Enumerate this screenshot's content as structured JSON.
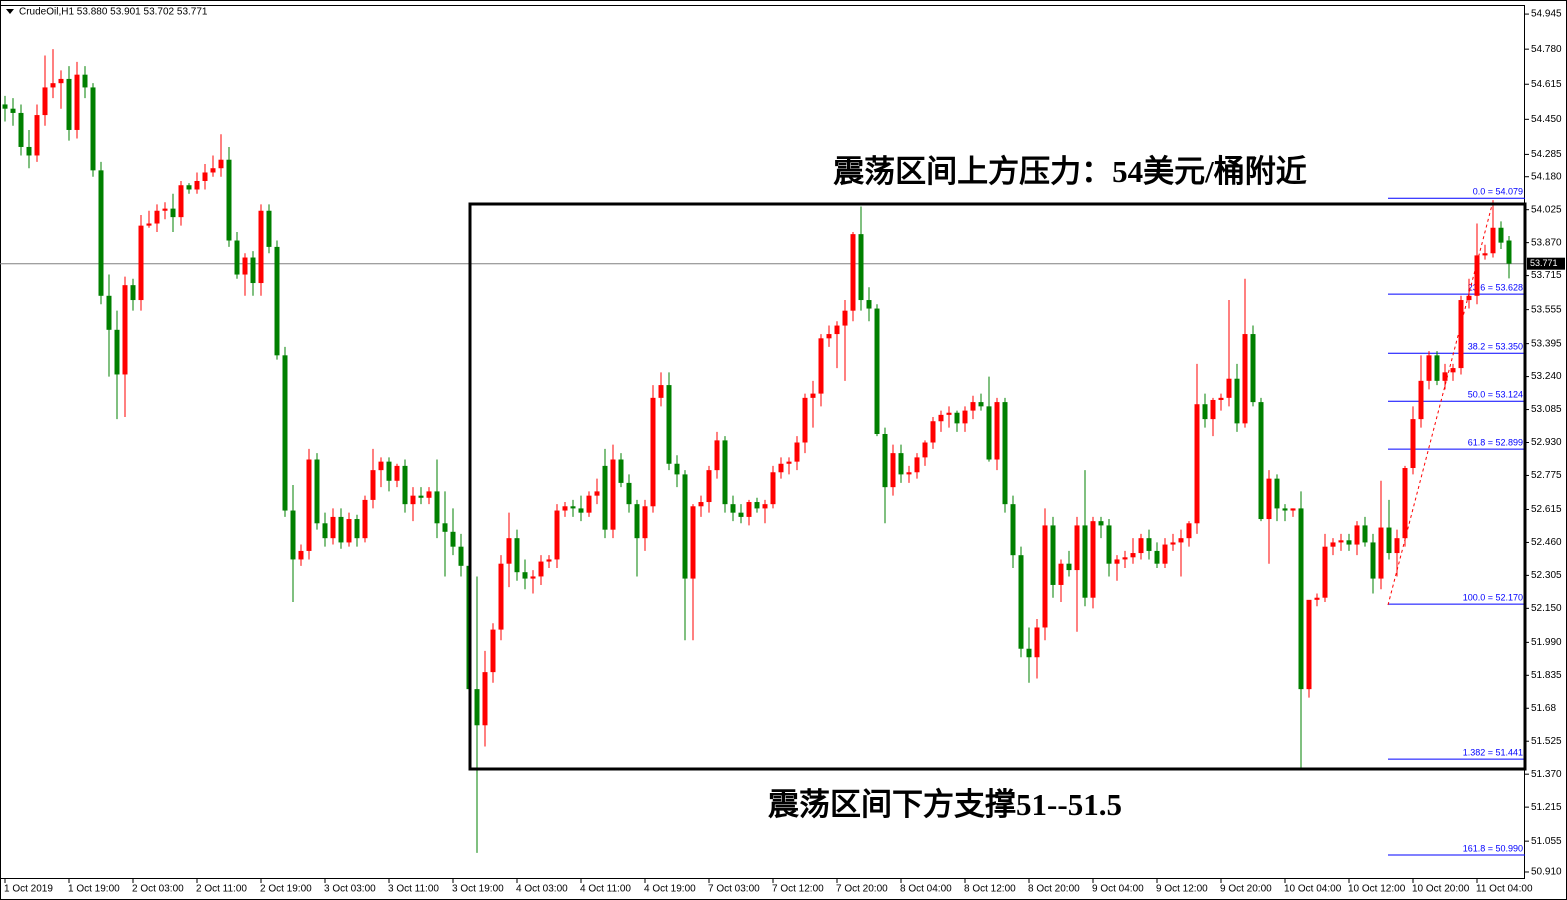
{
  "chart_data": {
    "type": "candlestick",
    "title": "CrudeOil,H1  53.880 53.901 53.702 53.771",
    "annotations": [
      "震荡区间上方压力：54美元/桶附近",
      "震荡区间下方支撑51--51.5"
    ],
    "up_color": "#ff0000",
    "down_color": "#008000",
    "ylim": [
      50.877,
      54.983
    ],
    "yticks": [
      54.945,
      {
        "value": 54.78,
        "label": "54.780"
      },
      54.615,
      {
        "value": 54.45,
        "label": "54.450"
      },
      54.285,
      {
        "value": 54.18,
        "label": "54.180"
      },
      54.025,
      {
        "value": 53.87,
        "label": "53.870"
      },
      53.715,
      53.555,
      53.395,
      {
        "value": 53.24,
        "label": "53.240"
      },
      53.085,
      {
        "value": 52.93,
        "label": "52.930"
      },
      52.775,
      52.615,
      {
        "value": 52.46,
        "label": "52.460"
      },
      52.305,
      {
        "value": 52.15,
        "label": "52.150"
      },
      {
        "value": 51.99,
        "label": "51.990"
      },
      51.835,
      51.68,
      51.525,
      {
        "value": 51.37,
        "label": "51.370"
      },
      51.215,
      51.055,
      {
        "value": 50.91,
        "label": "50.910"
      }
    ],
    "last_price": 53.771,
    "fibo": [
      {
        "label": "0.0 = 54.079",
        "value": 54.079
      },
      {
        "label": "23.6 = 53.628",
        "value": 53.628
      },
      {
        "label": "38.2 = 53.350",
        "value": 53.35
      },
      {
        "label": "50.0 = 53.124",
        "value": 53.124
      },
      {
        "label": "61.8 = 52.899",
        "value": 52.899
      },
      {
        "label": "100.0 = 52.170",
        "value": 52.17
      },
      {
        "label": "1.382 = 51.441",
        "value": 51.441
      },
      {
        "label": "161.8 = 50.990",
        "value": 50.99
      }
    ],
    "categories": [
      "1 Oct 2019",
      null,
      null,
      null,
      null,
      null,
      null,
      null,
      "1 Oct 19:00",
      null,
      null,
      null,
      null,
      null,
      null,
      null,
      "2 Oct 03:00",
      null,
      null,
      null,
      null,
      null,
      null,
      null,
      "2 Oct 11:00",
      null,
      null,
      null,
      null,
      null,
      null,
      null,
      "2 Oct 19:00",
      null,
      null,
      null,
      null,
      null,
      null,
      null,
      "3 Oct 03:00",
      null,
      null,
      null,
      null,
      null,
      null,
      null,
      "3 Oct 11:00",
      null,
      null,
      null,
      null,
      null,
      null,
      null,
      "3 Oct 19:00",
      null,
      null,
      null,
      null,
      null,
      null,
      null,
      "4 Oct 03:00",
      null,
      null,
      null,
      null,
      null,
      null,
      null,
      "4 Oct 11:00",
      null,
      null,
      null,
      null,
      null,
      null,
      null,
      "4 Oct 19:00",
      null,
      null,
      null,
      null,
      null,
      null,
      null,
      "7 Oct 03:00",
      null,
      null,
      null,
      null,
      null,
      null,
      null,
      "7 Oct 12:00",
      null,
      null,
      null,
      null,
      null,
      null,
      null,
      "7 Oct 20:00",
      null,
      null,
      null,
      null,
      null,
      null,
      null,
      "8 Oct 04:00",
      null,
      null,
      null,
      null,
      null,
      null,
      null,
      "8 Oct 12:00",
      null,
      null,
      null,
      null,
      null,
      null,
      null,
      "8 Oct 20:00",
      null,
      null,
      null,
      null,
      null,
      null,
      null,
      "9 Oct 04:00",
      null,
      null,
      null,
      null,
      null,
      null,
      null,
      "9 Oct 12:00",
      null,
      null,
      null,
      null,
      null,
      null,
      null,
      "9 Oct 20:00",
      null,
      null,
      null,
      null,
      null,
      null,
      null,
      "10 Oct 04:00",
      null,
      null,
      null,
      null,
      null,
      null,
      null,
      "10 Oct 12:00",
      null,
      null,
      null,
      null,
      null,
      null,
      null,
      "10 Oct 20:00",
      null,
      null,
      null,
      null,
      null,
      null,
      null,
      "11 Oct 04:00",
      null,
      null,
      null,
      null
    ],
    "ohlc": [
      [
        54.52,
        54.56,
        54.44,
        54.5
      ],
      [
        54.5,
        54.55,
        54.42,
        54.48
      ],
      [
        54.48,
        54.52,
        54.28,
        54.32
      ],
      [
        54.32,
        54.4,
        54.22,
        54.28
      ],
      [
        54.28,
        54.52,
        54.25,
        54.47
      ],
      [
        54.47,
        54.75,
        54.42,
        54.6
      ],
      [
        54.6,
        54.78,
        54.55,
        54.62
      ],
      [
        54.62,
        54.68,
        54.5,
        54.64
      ],
      [
        54.64,
        54.7,
        54.35,
        54.4
      ],
      [
        54.4,
        54.72,
        54.36,
        54.66
      ],
      [
        54.66,
        54.7,
        54.55,
        54.6
      ],
      [
        54.6,
        54.62,
        54.18,
        54.21
      ],
      [
        54.21,
        54.25,
        53.58,
        53.62
      ],
      [
        53.62,
        53.72,
        53.24,
        53.46
      ],
      [
        53.46,
        53.55,
        53.04,
        53.25
      ],
      [
        53.25,
        53.71,
        53.05,
        53.67
      ],
      [
        53.67,
        53.7,
        53.55,
        53.6
      ],
      [
        53.6,
        54.0,
        53.55,
        53.95
      ],
      [
        53.95,
        54.02,
        53.94,
        53.96
      ],
      [
        53.96,
        54.05,
        53.92,
        54.02
      ],
      [
        54.02,
        54.06,
        53.98,
        54.03
      ],
      [
        54.03,
        54.1,
        53.92,
        53.99
      ],
      [
        53.99,
        54.16,
        53.95,
        54.14
      ],
      [
        54.14,
        54.15,
        54.1,
        54.12
      ],
      [
        54.12,
        54.2,
        54.1,
        54.16
      ],
      [
        54.16,
        54.24,
        54.12,
        54.2
      ],
      [
        54.2,
        54.28,
        54.18,
        54.22
      ],
      [
        54.22,
        54.38,
        54.18,
        54.26
      ],
      [
        54.26,
        54.32,
        53.85,
        53.88
      ],
      [
        53.88,
        53.92,
        53.7,
        53.72
      ],
      [
        53.72,
        53.82,
        53.62,
        53.8
      ],
      [
        53.8,
        53.83,
        53.62,
        53.68
      ],
      [
        53.68,
        54.05,
        53.62,
        54.02
      ],
      [
        54.02,
        54.05,
        53.82,
        53.85
      ],
      [
        53.85,
        53.88,
        53.32,
        53.34
      ],
      [
        53.34,
        53.38,
        52.58,
        52.61
      ],
      [
        52.61,
        52.73,
        52.18,
        52.38
      ],
      [
        52.38,
        52.45,
        52.35,
        52.42
      ],
      [
        52.42,
        52.9,
        52.38,
        52.85
      ],
      [
        52.85,
        52.88,
        52.52,
        52.55
      ],
      [
        52.55,
        52.6,
        52.44,
        52.48
      ],
      [
        52.48,
        52.62,
        52.45,
        52.58
      ],
      [
        52.58,
        52.62,
        52.43,
        52.46
      ],
      [
        52.46,
        52.6,
        52.44,
        52.57
      ],
      [
        52.57,
        52.59,
        52.44,
        52.48
      ],
      [
        52.48,
        52.68,
        52.46,
        52.66
      ],
      [
        52.66,
        52.9,
        52.62,
        52.8
      ],
      [
        52.8,
        52.86,
        52.72,
        52.84
      ],
      [
        52.84,
        52.86,
        52.7,
        52.75
      ],
      [
        52.75,
        52.83,
        52.72,
        52.82
      ],
      [
        52.82,
        52.85,
        52.6,
        52.64
      ],
      [
        52.64,
        52.72,
        52.56,
        52.68
      ],
      [
        52.68,
        52.72,
        52.64,
        52.67
      ],
      [
        52.67,
        52.72,
        52.64,
        52.7
      ],
      [
        52.7,
        52.85,
        52.48,
        52.55
      ],
      [
        52.55,
        52.7,
        52.3,
        52.51
      ],
      [
        52.51,
        52.62,
        52.4,
        52.44
      ],
      [
        52.44,
        52.5,
        52.3,
        52.35
      ],
      [
        52.35,
        52.38,
        51.75,
        51.77
      ],
      [
        51.77,
        52.3,
        51.0,
        51.6
      ],
      [
        51.6,
        51.95,
        51.5,
        51.85
      ],
      [
        51.85,
        52.08,
        51.8,
        52.05
      ],
      [
        52.05,
        52.4,
        52.0,
        52.36
      ],
      [
        52.36,
        52.6,
        52.25,
        52.48
      ],
      [
        52.48,
        52.52,
        52.28,
        52.32
      ],
      [
        52.32,
        52.38,
        52.24,
        52.29
      ],
      [
        52.29,
        52.33,
        52.22,
        52.3
      ],
      [
        52.3,
        52.4,
        52.26,
        52.37
      ],
      [
        52.37,
        52.4,
        52.34,
        52.38
      ],
      [
        52.38,
        52.64,
        52.34,
        52.61
      ],
      [
        52.61,
        52.65,
        52.58,
        52.63
      ],
      [
        52.63,
        52.66,
        52.58,
        52.62
      ],
      [
        52.62,
        52.68,
        52.56,
        52.6
      ],
      [
        52.6,
        52.7,
        52.58,
        52.68
      ],
      [
        52.68,
        52.76,
        52.64,
        52.7
      ],
      [
        52.82,
        52.9,
        52.48,
        52.52
      ],
      [
        52.52,
        52.92,
        52.48,
        52.85
      ],
      [
        52.85,
        52.88,
        52.72,
        52.74
      ],
      [
        52.74,
        52.78,
        52.6,
        52.64
      ],
      [
        52.64,
        52.66,
        52.3,
        52.48
      ],
      [
        52.48,
        52.66,
        52.42,
        52.63
      ],
      [
        52.63,
        53.2,
        52.6,
        53.14
      ],
      [
        53.14,
        53.26,
        53.1,
        53.2
      ],
      [
        53.2,
        53.26,
        52.8,
        52.83
      ],
      [
        52.83,
        52.87,
        52.72,
        52.78
      ],
      [
        52.78,
        52.8,
        52.0,
        52.29
      ],
      [
        52.29,
        52.64,
        52.0,
        52.63
      ],
      [
        52.63,
        52.68,
        52.58,
        52.65
      ],
      [
        52.65,
        52.82,
        52.6,
        52.8
      ],
      [
        52.8,
        52.98,
        52.76,
        52.94
      ],
      [
        52.94,
        52.96,
        52.6,
        52.64
      ],
      [
        52.64,
        52.68,
        52.56,
        52.6
      ],
      [
        52.6,
        52.64,
        52.55,
        52.58
      ],
      [
        52.58,
        52.66,
        52.54,
        52.65
      ],
      [
        52.65,
        52.67,
        52.6,
        52.62
      ],
      [
        52.62,
        52.66,
        52.55,
        52.64
      ],
      [
        52.64,
        52.82,
        52.62,
        52.79
      ],
      [
        52.79,
        52.86,
        52.76,
        52.83
      ],
      [
        52.83,
        52.86,
        52.78,
        52.84
      ],
      [
        52.84,
        52.96,
        52.8,
        52.93
      ],
      [
        52.93,
        53.16,
        52.88,
        53.14
      ],
      [
        53.14,
        53.22,
        53.0,
        53.16
      ],
      [
        53.16,
        53.44,
        53.1,
        53.42
      ],
      [
        53.42,
        53.48,
        53.38,
        53.44
      ],
      [
        53.44,
        53.5,
        53.28,
        53.48
      ],
      [
        53.48,
        53.6,
        53.22,
        53.55
      ],
      [
        53.55,
        53.92,
        53.5,
        53.91
      ],
      [
        53.91,
        54.04,
        53.55,
        53.6
      ],
      [
        53.6,
        53.66,
        53.5,
        53.56
      ],
      [
        53.56,
        53.58,
        52.96,
        52.97
      ],
      [
        52.97,
        53.0,
        52.55,
        52.72
      ],
      [
        52.72,
        52.92,
        52.68,
        52.88
      ],
      [
        52.88,
        52.92,
        52.74,
        52.78
      ],
      [
        52.78,
        52.82,
        52.74,
        52.79
      ],
      [
        52.79,
        52.88,
        52.76,
        52.86
      ],
      [
        52.86,
        52.94,
        52.82,
        52.93
      ],
      [
        52.93,
        53.05,
        52.9,
        53.03
      ],
      [
        53.03,
        53.08,
        52.98,
        53.06
      ],
      [
        53.06,
        53.1,
        53.0,
        53.07
      ],
      [
        53.07,
        53.08,
        52.98,
        53.02
      ],
      [
        53.02,
        53.1,
        52.98,
        53.08
      ],
      [
        53.08,
        53.15,
        53.04,
        53.12
      ],
      [
        53.12,
        53.16,
        53.08,
        53.1
      ],
      [
        53.1,
        53.24,
        52.84,
        52.85
      ],
      [
        52.85,
        53.14,
        52.8,
        53.12
      ],
      [
        53.12,
        53.14,
        52.6,
        52.64
      ],
      [
        52.64,
        52.68,
        52.34,
        52.4
      ],
      [
        52.4,
        52.44,
        51.92,
        51.96
      ],
      [
        51.96,
        52.06,
        51.8,
        51.92
      ],
      [
        51.92,
        52.1,
        51.82,
        52.06
      ],
      [
        52.06,
        52.62,
        52.0,
        52.54
      ],
      [
        52.54,
        52.58,
        52.2,
        52.26
      ],
      [
        52.26,
        52.38,
        52.18,
        52.36
      ],
      [
        52.36,
        52.42,
        52.3,
        52.33
      ],
      [
        52.33,
        52.58,
        52.04,
        52.54
      ],
      [
        52.54,
        52.8,
        52.16,
        52.2
      ],
      [
        52.2,
        52.58,
        52.15,
        52.56
      ],
      [
        52.56,
        52.58,
        52.48,
        52.54
      ],
      [
        52.54,
        52.57,
        52.3,
        52.36
      ],
      [
        52.36,
        52.4,
        52.28,
        52.38
      ],
      [
        52.38,
        52.42,
        52.34,
        52.39
      ],
      [
        52.39,
        52.48,
        52.36,
        52.41
      ],
      [
        52.41,
        52.5,
        52.38,
        52.48
      ],
      [
        52.48,
        52.52,
        52.38,
        52.42
      ],
      [
        52.42,
        52.46,
        52.34,
        52.36
      ],
      [
        52.36,
        52.48,
        52.34,
        52.45
      ],
      [
        52.45,
        52.5,
        52.42,
        52.46
      ],
      [
        52.46,
        52.52,
        52.3,
        52.48
      ],
      [
        52.48,
        52.56,
        52.44,
        52.55
      ],
      [
        52.55,
        53.3,
        52.5,
        53.11
      ],
      [
        53.11,
        53.16,
        53.0,
        53.04
      ],
      [
        53.04,
        53.14,
        52.96,
        53.13
      ],
      [
        53.13,
        53.16,
        53.08,
        53.14
      ],
      [
        53.14,
        53.6,
        53.1,
        53.23
      ],
      [
        53.23,
        53.3,
        52.98,
        53.02
      ],
      [
        53.02,
        53.7,
        53.0,
        53.44
      ],
      [
        53.44,
        53.48,
        53.1,
        53.12
      ],
      [
        53.12,
        53.14,
        52.56,
        52.57
      ],
      [
        52.57,
        52.8,
        52.36,
        52.76
      ],
      [
        52.76,
        52.78,
        52.56,
        52.62
      ],
      [
        52.62,
        52.64,
        52.56,
        52.61
      ],
      [
        52.61,
        52.62,
        52.58,
        52.62
      ],
      [
        52.62,
        52.7,
        51.4,
        51.77
      ],
      [
        51.77,
        52.17,
        51.73,
        52.19
      ],
      [
        52.19,
        52.22,
        52.16,
        52.2
      ],
      [
        52.2,
        52.5,
        52.18,
        52.44
      ],
      [
        52.44,
        52.48,
        52.4,
        52.46
      ],
      [
        52.46,
        52.5,
        52.42,
        52.47
      ],
      [
        52.47,
        52.5,
        52.42,
        52.45
      ],
      [
        52.45,
        52.56,
        52.4,
        52.54
      ],
      [
        52.54,
        52.58,
        52.44,
        52.46
      ],
      [
        52.46,
        52.5,
        52.22,
        52.29
      ],
      [
        52.29,
        52.75,
        52.24,
        52.53
      ],
      [
        52.53,
        52.66,
        52.38,
        52.41
      ],
      [
        52.41,
        52.52,
        52.3,
        52.48
      ],
      [
        52.48,
        52.82,
        52.44,
        52.81
      ],
      [
        52.81,
        53.1,
        52.78,
        53.04
      ],
      [
        53.04,
        53.34,
        53.0,
        53.22
      ],
      [
        53.22,
        53.36,
        53.18,
        53.34
      ],
      [
        53.34,
        53.36,
        53.2,
        53.22
      ],
      [
        53.22,
        53.3,
        53.18,
        53.26
      ],
      [
        53.26,
        53.3,
        53.22,
        53.28
      ],
      [
        53.28,
        53.62,
        53.25,
        53.6
      ],
      [
        53.6,
        53.7,
        53.56,
        53.62
      ],
      [
        53.62,
        53.96,
        53.58,
        53.81
      ],
      [
        53.81,
        53.86,
        53.79,
        53.82
      ],
      [
        53.82,
        54.07,
        53.8,
        53.94
      ],
      [
        53.94,
        53.97,
        53.84,
        53.87
      ],
      [
        53.88,
        53.901,
        53.702,
        53.771
      ]
    ]
  }
}
